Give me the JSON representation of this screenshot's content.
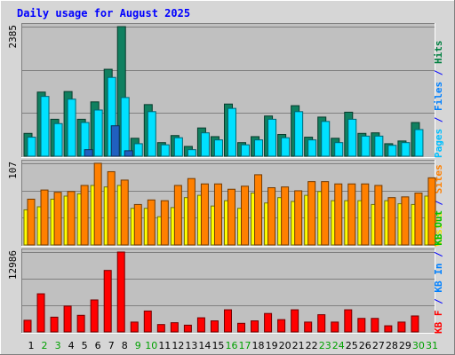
{
  "chart_data": [
    {
      "type": "bar",
      "title": "Daily usage for August 2025",
      "categories": [
        "1",
        "2",
        "3",
        "4",
        "5",
        "6",
        "7",
        "8",
        "9",
        "10",
        "11",
        "12",
        "13",
        "14",
        "15",
        "16",
        "17",
        "18",
        "19",
        "20",
        "21",
        "22",
        "23",
        "24",
        "25",
        "26",
        "27",
        "28",
        "29",
        "30",
        "31"
      ],
      "weekend_days": [
        "2",
        "3",
        "9",
        "10",
        "16",
        "17",
        "23",
        "24",
        "30",
        "31"
      ],
      "ymax_label": "2385",
      "ymax": 2385,
      "right_label": [
        {
          "text": "Pages",
          "color": "#00c0ff"
        },
        {
          "text": " / ",
          "color": "#0000ff"
        },
        {
          "text": "Files",
          "color": "#0080ff"
        },
        {
          "text": " / ",
          "color": "#0000ff"
        },
        {
          "text": "Hits",
          "color": "#008040"
        }
      ],
      "series": [
        {
          "name": "Hits",
          "color": "#108060",
          "values": [
            420,
            1180,
            680,
            1190,
            680,
            1000,
            1600,
            2385,
            330,
            950,
            250,
            380,
            180,
            520,
            360,
            960,
            250,
            360,
            740,
            400,
            930,
            350,
            720,
            330,
            810,
            420,
            430,
            230,
            280,
            620,
            0
          ]
        },
        {
          "name": "Files",
          "color": "#00e0ff",
          "values": [
            350,
            1100,
            600,
            1050,
            620,
            850,
            1450,
            1080,
            230,
            820,
            210,
            340,
            120,
            430,
            300,
            880,
            210,
            300,
            680,
            340,
            820,
            300,
            640,
            250,
            680,
            370,
            370,
            200,
            250,
            490,
            0
          ]
        },
        {
          "name": "Pages",
          "color": "#2060c0",
          "values": [
            0,
            0,
            0,
            0,
            120,
            0,
            560,
            100,
            0,
            0,
            0,
            0,
            0,
            0,
            0,
            0,
            0,
            0,
            0,
            0,
            0,
            0,
            0,
            0,
            0,
            0,
            0,
            0,
            0,
            0,
            0
          ]
        }
      ]
    },
    {
      "type": "bar",
      "ymax_label": "107",
      "ymax": 107,
      "right_label": [
        {
          "text": "Visits",
          "color": "#f0e000"
        },
        {
          "text": " / ",
          "color": "#0000ff"
        },
        {
          "text": "Sites",
          "color": "#ff8000"
        }
      ],
      "series": [
        {
          "name": "Visits",
          "color": "#ffff00",
          "values": [
            46,
            50,
            60,
            64,
            67,
            78,
            76,
            78,
            48,
            48,
            37,
            49,
            62,
            65,
            51,
            58,
            48,
            68,
            55,
            62,
            57,
            65,
            70,
            58,
            58,
            58,
            53,
            58,
            54,
            53,
            64
          ]
        },
        {
          "name": "Sites",
          "color": "#ff8000",
          "values": [
            60,
            72,
            69,
            70,
            78,
            107,
            96,
            85,
            53,
            59,
            58,
            78,
            87,
            80,
            80,
            73,
            77,
            92,
            75,
            76,
            71,
            83,
            83,
            80,
            80,
            80,
            78,
            62,
            63,
            68,
            88
          ]
        }
      ]
    },
    {
      "type": "bar",
      "ymax_label": "12986",
      "ymax": 12986,
      "right_label": [
        {
          "text": "KB F",
          "color": "#ff0000"
        },
        {
          "text": " / ",
          "color": "#0000ff"
        },
        {
          "text": "KB In",
          "color": "#0080ff"
        },
        {
          "text": " / ",
          "color": "#0000ff"
        },
        {
          "text": "KB Out",
          "color": "#00c000"
        }
      ],
      "series": [
        {
          "name": "KB F",
          "color": "#ff0000",
          "values": [
            1900,
            6200,
            2400,
            4200,
            2700,
            5200,
            10000,
            12986,
            1600,
            3400,
            1200,
            1500,
            1100,
            2300,
            1800,
            3600,
            1400,
            1800,
            3000,
            2000,
            3600,
            1600,
            2800,
            1600,
            3600,
            2200,
            2200,
            1000,
            1600,
            2600,
            0
          ]
        }
      ]
    }
  ]
}
